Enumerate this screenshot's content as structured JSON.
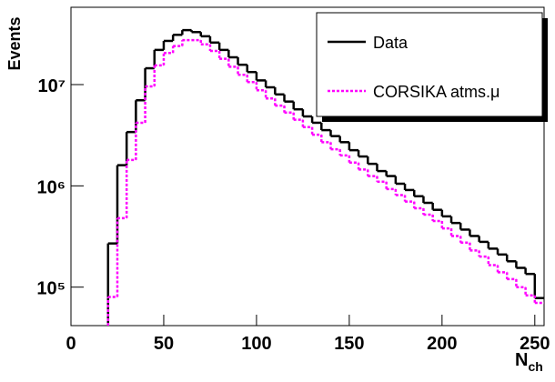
{
  "chart_data": {
    "type": "histogram",
    "y_label": "Events",
    "x_label": "N",
    "x_label_sub": "ch",
    "log_y": true,
    "legend": "upper right",
    "bins": [
      20,
      25,
      30,
      35,
      40,
      45,
      50,
      55,
      60,
      65,
      70,
      75,
      80,
      85,
      90,
      95,
      100,
      105,
      110,
      115,
      120,
      125,
      130,
      135,
      140,
      145,
      150,
      155,
      160,
      165,
      170,
      175,
      180,
      185,
      190,
      195,
      200,
      205,
      210,
      215,
      220,
      225,
      230,
      235,
      240,
      245,
      250,
      255
    ],
    "series": [
      {
        "name": "Data",
        "color": "#000000",
        "line_style": "solid",
        "values": [
          270000,
          1600000,
          3400000,
          7000000,
          14500000,
          22000000,
          27000000,
          31000000,
          34500000,
          33000000,
          30000000,
          26000000,
          22000000,
          18600000,
          15700000,
          13300000,
          11000000,
          9400000,
          8000000,
          6800000,
          5700000,
          4850000,
          4200000,
          3550000,
          3100000,
          2700000,
          2250000,
          1950000,
          1650000,
          1400000,
          1250000,
          1050000,
          910000,
          790000,
          680000,
          580000,
          500000,
          430000,
          370000,
          320000,
          280000,
          240000,
          210000,
          180000,
          155000,
          135000,
          78000
        ]
      },
      {
        "name": "CORSIKA atms.μ",
        "color": "#ff00ff",
        "line_style": "dotted",
        "values": [
          80000,
          480000,
          1800000,
          4200000,
          9600000,
          15500000,
          20500000,
          24000000,
          27500000,
          27500000,
          25000000,
          21500000,
          18000000,
          15000000,
          12500000,
          10600000,
          8800000,
          7300000,
          6200000,
          5300000,
          4500000,
          3800000,
          3200000,
          2700000,
          2300000,
          2000000,
          1700000,
          1450000,
          1250000,
          1100000,
          930000,
          810000,
          700000,
          600000,
          520000,
          450000,
          380000,
          320000,
          275000,
          230000,
          200000,
          165000,
          140000,
          120000,
          100000,
          83000,
          70000
        ]
      }
    ],
    "xlim": [
      0,
      255
    ],
    "xticks": [
      0,
      50,
      100,
      150,
      200,
      250
    ],
    "ylim": [
      41700,
      58000000
    ],
    "yticks": [
      {
        "value": 100000,
        "label": "10⁵"
      },
      {
        "value": 1000000,
        "label": "10⁶"
      },
      {
        "value": 10000000,
        "label": "10⁷"
      }
    ]
  }
}
